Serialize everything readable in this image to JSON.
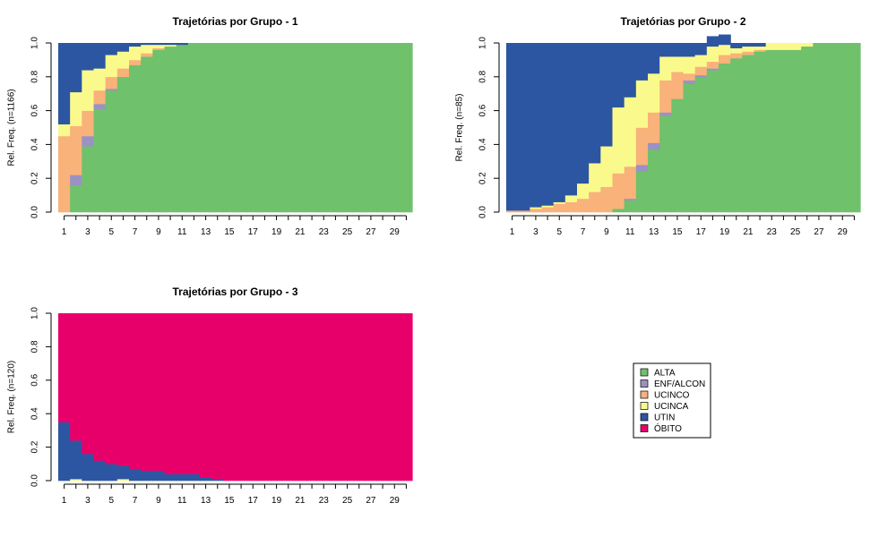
{
  "colors": {
    "ALTA": "#6fc16b",
    "ENF/ALCON": "#9a92c2",
    "UCINCO": "#f8b27a",
    "UCINCA": "#fafa8c",
    "UTIN": "#2c56a2",
    "ÓBITO": "#e8006a"
  },
  "legend": {
    "placement": "center-right (empty 4th panel)",
    "items": [
      {
        "label": "ALTA",
        "color": "#6fc16b"
      },
      {
        "label": "ENF/ALCON",
        "color": "#9a92c2"
      },
      {
        "label": "UCINCO",
        "color": "#f8b27a"
      },
      {
        "label": "UCINCA",
        "color": "#fafa8c"
      },
      {
        "label": "UTIN",
        "color": "#2c56a2"
      },
      {
        "label": "ÓBITO",
        "color": "#e8006a"
      }
    ]
  },
  "chart_data": [
    {
      "type": "area",
      "stacked": "proportion",
      "title": "Trajetórias por Grupo -  1",
      "ylabel": "Rel. Freq. (n=1166)",
      "ylim": [
        0,
        1
      ],
      "yticks": [
        "0.0",
        "0.2",
        "0.4",
        "0.6",
        "0.8",
        "1.0"
      ],
      "xticks": [
        "1",
        "3",
        "5",
        "7",
        "9",
        "11",
        "13",
        "15",
        "17",
        "19",
        "21",
        "23",
        "25",
        "27",
        "29"
      ],
      "x": [
        1,
        2,
        3,
        4,
        5,
        6,
        7,
        8,
        9,
        10,
        11,
        12,
        13,
        14,
        15,
        16,
        17,
        18,
        19,
        20,
        21,
        22,
        23,
        24,
        25,
        26,
        27,
        28,
        29,
        30
      ],
      "stack_order": [
        "ALTA",
        "ENF/ALCON",
        "UCINCO",
        "UCINCA",
        "UTIN",
        "ÓBITO"
      ],
      "series": [
        {
          "name": "ALTA",
          "values": [
            0,
            0.16,
            0.39,
            0.61,
            0.72,
            0.8,
            0.87,
            0.92,
            0.96,
            0.98,
            0.99,
            1,
            1,
            1,
            1,
            1,
            1,
            1,
            1,
            1,
            1,
            1,
            1,
            1,
            1,
            1,
            1,
            1,
            1,
            1
          ]
        },
        {
          "name": "ENF/ALCON",
          "values": [
            0,
            0.06,
            0.06,
            0.03,
            0.01,
            0,
            0,
            0,
            0,
            0,
            0,
            0,
            0,
            0,
            0,
            0,
            0,
            0,
            0,
            0,
            0,
            0,
            0,
            0,
            0,
            0,
            0,
            0,
            0,
            0
          ]
        },
        {
          "name": "UCINCO",
          "values": [
            0.45,
            0.29,
            0.15,
            0.08,
            0.07,
            0.05,
            0.03,
            0.02,
            0.01,
            0,
            0,
            0,
            0,
            0,
            0,
            0,
            0,
            0,
            0,
            0,
            0,
            0,
            0,
            0,
            0,
            0,
            0,
            0,
            0,
            0
          ]
        },
        {
          "name": "UCINCA",
          "values": [
            0.07,
            0.2,
            0.24,
            0.13,
            0.13,
            0.1,
            0.08,
            0.05,
            0.02,
            0.01,
            0,
            0,
            0,
            0,
            0,
            0,
            0,
            0,
            0,
            0,
            0,
            0,
            0,
            0,
            0,
            0,
            0,
            0,
            0,
            0
          ]
        },
        {
          "name": "UTIN",
          "values": [
            0.48,
            0.29,
            0.16,
            0.15,
            0.07,
            0.05,
            0.02,
            0.01,
            0.01,
            0.01,
            0.01,
            0,
            0,
            0,
            0,
            0,
            0,
            0,
            0,
            0,
            0,
            0,
            0,
            0,
            0,
            0,
            0,
            0,
            0,
            0
          ]
        },
        {
          "name": "ÓBITO",
          "values": [
            0,
            0,
            0,
            0,
            0,
            0,
            0,
            0,
            0,
            0,
            0,
            0,
            0,
            0,
            0,
            0,
            0,
            0,
            0,
            0,
            0,
            0,
            0,
            0,
            0,
            0,
            0,
            0,
            0,
            0
          ]
        }
      ]
    },
    {
      "type": "area",
      "stacked": "proportion",
      "title": "Trajetórias por Grupo -  2",
      "ylabel": "Rel. Freq. (n=85)",
      "ylim": [
        0,
        1
      ],
      "yticks": [
        "0.0",
        "0.2",
        "0.4",
        "0.6",
        "0.8",
        "1.0"
      ],
      "xticks": [
        "1",
        "3",
        "5",
        "7",
        "9",
        "11",
        "13",
        "15",
        "17",
        "19",
        "21",
        "23",
        "25",
        "27",
        "29"
      ],
      "x": [
        1,
        2,
        3,
        4,
        5,
        6,
        7,
        8,
        9,
        10,
        11,
        12,
        13,
        14,
        15,
        16,
        17,
        18,
        19,
        20,
        21,
        22,
        23,
        24,
        25,
        26,
        27,
        28,
        29,
        30
      ],
      "stack_order": [
        "ALTA",
        "ENF/ALCON",
        "UCINCO",
        "UCINCA",
        "UTIN",
        "ÓBITO"
      ],
      "series": [
        {
          "name": "ALTA",
          "values": [
            0,
            0,
            0,
            0,
            0,
            0,
            0,
            0,
            0,
            0.02,
            0.07,
            0.24,
            0.37,
            0.57,
            0.67,
            0.76,
            0.8,
            0.84,
            0.88,
            0.91,
            0.93,
            0.95,
            0.96,
            0.96,
            0.96,
            0.98,
            1,
            1,
            1,
            1
          ]
        },
        {
          "name": "ENF/ALCON",
          "values": [
            0,
            0,
            0,
            0,
            0,
            0,
            0,
            0,
            0,
            0,
            0.01,
            0.04,
            0.04,
            0.02,
            0,
            0.02,
            0.01,
            0.01,
            0,
            0,
            0,
            0,
            0,
            0,
            0,
            0,
            0,
            0,
            0,
            0
          ]
        },
        {
          "name": "UCINCO",
          "values": [
            0.01,
            0.01,
            0.02,
            0.03,
            0.05,
            0.06,
            0.08,
            0.12,
            0.15,
            0.21,
            0.19,
            0.22,
            0.18,
            0.19,
            0.16,
            0.04,
            0.05,
            0.04,
            0.05,
            0.03,
            0.02,
            0.01,
            0,
            0,
            0,
            0,
            0,
            0,
            0,
            0
          ]
        },
        {
          "name": "UCINCA",
          "values": [
            0,
            0,
            0.01,
            0.01,
            0.01,
            0.04,
            0.09,
            0.17,
            0.24,
            0.39,
            0.41,
            0.28,
            0.23,
            0.14,
            0.09,
            0.1,
            0.07,
            0.09,
            0.06,
            0.03,
            0.03,
            0.02,
            0.04,
            0.04,
            0.04,
            0.02,
            0,
            0,
            0,
            0
          ]
        },
        {
          "name": "UTIN",
          "values": [
            0.99,
            0.99,
            0.97,
            0.96,
            0.94,
            0.9,
            0.83,
            0.71,
            0.61,
            0.38,
            0.32,
            0.22,
            0.18,
            0.08,
            0.08,
            0.08,
            0.07,
            0.06,
            0.06,
            0.03,
            0.02,
            0.02,
            0,
            0,
            0,
            0,
            0,
            0,
            0,
            0
          ]
        },
        {
          "name": "ÓBITO",
          "values": [
            0,
            0,
            0,
            0,
            0,
            0,
            0,
            0,
            0,
            0,
            0,
            0,
            0,
            0,
            0,
            0,
            0,
            0,
            0,
            0,
            0,
            0,
            0,
            0,
            0,
            0,
            0,
            0,
            0,
            0
          ]
        }
      ]
    },
    {
      "type": "area",
      "stacked": "proportion",
      "title": "Trajetórias por Grupo -  3",
      "ylabel": "Rel. Freq. (n=120)",
      "ylim": [
        0,
        1
      ],
      "yticks": [
        "0.0",
        "0.2",
        "0.4",
        "0.6",
        "0.8",
        "1.0"
      ],
      "xticks": [
        "1",
        "3",
        "5",
        "7",
        "9",
        "11",
        "13",
        "15",
        "17",
        "19",
        "21",
        "23",
        "25",
        "27",
        "29"
      ],
      "x": [
        1,
        2,
        3,
        4,
        5,
        6,
        7,
        8,
        9,
        10,
        11,
        12,
        13,
        14,
        15,
        16,
        17,
        18,
        19,
        20,
        21,
        22,
        23,
        24,
        25,
        26,
        27,
        28,
        29,
        30
      ],
      "stack_order": [
        "ALTA",
        "ENF/ALCON",
        "UCINCO",
        "UCINCA",
        "UTIN",
        "ÓBITO"
      ],
      "series": [
        {
          "name": "ALTA",
          "values": [
            0,
            0,
            0,
            0,
            0,
            0,
            0,
            0,
            0,
            0,
            0,
            0,
            0,
            0,
            0,
            0,
            0,
            0,
            0,
            0,
            0,
            0,
            0,
            0,
            0,
            0,
            0,
            0,
            0,
            0
          ]
        },
        {
          "name": "ENF/ALCON",
          "values": [
            0,
            0,
            0,
            0,
            0,
            0,
            0,
            0,
            0,
            0,
            0,
            0,
            0,
            0,
            0,
            0,
            0,
            0,
            0,
            0,
            0,
            0,
            0,
            0,
            0,
            0,
            0,
            0,
            0,
            0
          ]
        },
        {
          "name": "UCINCO",
          "values": [
            0,
            0,
            0,
            0,
            0,
            0,
            0,
            0,
            0,
            0,
            0,
            0,
            0,
            0,
            0,
            0,
            0,
            0,
            0,
            0,
            0,
            0,
            0,
            0,
            0,
            0,
            0,
            0,
            0,
            0
          ]
        },
        {
          "name": "UCINCA",
          "values": [
            0,
            0.01,
            0,
            0,
            0,
            0.01,
            0,
            0,
            0,
            0,
            0,
            0,
            0,
            0,
            0,
            0,
            0,
            0,
            0,
            0,
            0,
            0,
            0,
            0,
            0,
            0,
            0,
            0,
            0,
            0
          ]
        },
        {
          "name": "UTIN",
          "values": [
            0.35,
            0.23,
            0.16,
            0.12,
            0.1,
            0.08,
            0.07,
            0.06,
            0.06,
            0.04,
            0.04,
            0.04,
            0.02,
            0.01,
            0,
            0,
            0,
            0,
            0,
            0,
            0,
            0,
            0,
            0,
            0,
            0,
            0,
            0,
            0,
            0
          ]
        },
        {
          "name": "ÓBITO",
          "values": [
            0.65,
            0.76,
            0.84,
            0.88,
            0.9,
            0.91,
            0.93,
            0.94,
            0.94,
            0.96,
            0.96,
            0.96,
            0.98,
            0.99,
            1,
            1,
            1,
            1,
            1,
            1,
            1,
            1,
            1,
            1,
            1,
            1,
            1,
            1,
            1,
            1
          ]
        }
      ]
    }
  ]
}
